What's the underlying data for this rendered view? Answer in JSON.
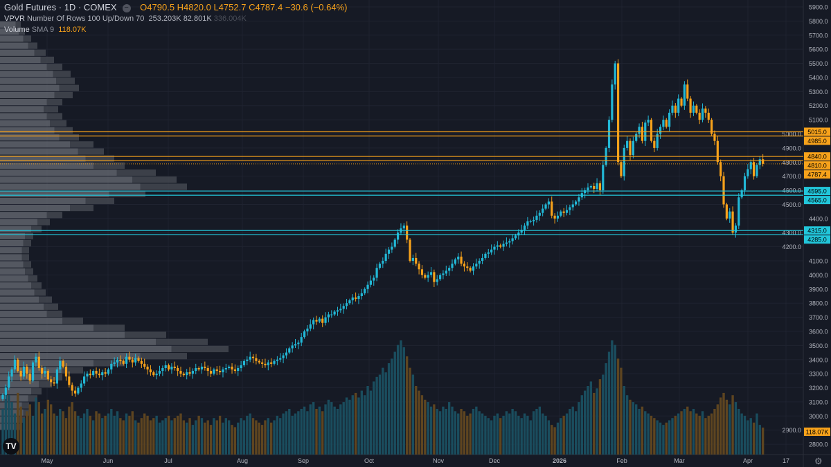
{
  "header": {
    "title": "Gold Futures · 1D · COMEX",
    "open": "O4790.5",
    "high": "H4820.0",
    "low": "L4752.7",
    "close": "C4787.4",
    "change": "−30.6 (−0.64%)",
    "vpvr_label": "VPVR",
    "vpvr_params": "Number Of Rows 100 Up/Down 70",
    "vpvr_up": "253.203K",
    "vpvr_down": "82.801K",
    "vpvr_total": "336.004K",
    "volume_label": "Volume",
    "volume_params": "SMA 9",
    "volume_value": "118.07K"
  },
  "colors": {
    "background": "#161a25",
    "up": "#22b8d6",
    "down": "#f7a21b",
    "vol_up": "#1a4d5e",
    "vol_down": "#5e4520",
    "grid": "#1f2330"
  },
  "icons": {
    "logo": "tradingview-logo",
    "settings": "gear-icon"
  },
  "chart_data": {
    "type": "candlestick",
    "title": "Gold Futures · 1D · COMEX",
    "ylim": [
      2750,
      5950
    ],
    "y_ticks": [
      2800,
      2900,
      3000,
      3100,
      3200,
      3300,
      3400,
      3500,
      3600,
      3700,
      3800,
      3900,
      4000,
      4100,
      4200,
      4300,
      4400,
      4500,
      4600,
      4700,
      4800,
      4900,
      5000,
      5100,
      5200,
      5300,
      5400,
      5500,
      5600,
      5700,
      5800,
      5900
    ],
    "x_ticks": [
      "May",
      "Jun",
      "Jul",
      "Aug",
      "Sep",
      "Oct",
      "Nov",
      "Dec",
      "2026",
      "Feb",
      "Mar",
      "Apr",
      "17"
    ],
    "closes": [
      3150,
      3200,
      3280,
      3330,
      3400,
      3320,
      3280,
      3350,
      3300,
      3250,
      3380,
      3420,
      3340,
      3300,
      3320,
      3260,
      3240,
      3230,
      3330,
      3390,
      3350,
      3280,
      3220,
      3180,
      3160,
      3200,
      3230,
      3280,
      3300,
      3290,
      3320,
      3300,
      3290,
      3310,
      3300,
      3330,
      3370,
      3380,
      3400,
      3390,
      3370,
      3420,
      3400,
      3380,
      3410,
      3390,
      3370,
      3350,
      3330,
      3310,
      3290,
      3300,
      3320,
      3340,
      3360,
      3330,
      3350,
      3340,
      3320,
      3300,
      3290,
      3310,
      3300,
      3320,
      3340,
      3330,
      3350,
      3340,
      3320,
      3300,
      3330,
      3320,
      3310,
      3330,
      3340,
      3350,
      3330,
      3320,
      3340,
      3360,
      3390,
      3400,
      3420,
      3410,
      3390,
      3380,
      3370,
      3360,
      3380,
      3370,
      3390,
      3400,
      3410,
      3430,
      3450,
      3480,
      3500,
      3510,
      3520,
      3560,
      3600,
      3620,
      3650,
      3680,
      3670,
      3690,
      3660,
      3700,
      3720,
      3720,
      3740,
      3750,
      3760,
      3780,
      3800,
      3820,
      3840,
      3830,
      3850,
      3870,
      3900,
      3930,
      3960,
      3980,
      4050,
      4080,
      4100,
      4150,
      4180,
      4200,
      4250,
      4300,
      4330,
      4350,
      4250,
      4100,
      4120,
      4080,
      4040,
      4000,
      3980,
      4000,
      4020,
      3950,
      3970,
      4000,
      4010,
      4030,
      4050,
      4080,
      4110,
      4130,
      4080,
      4060,
      4050,
      4030,
      4060,
      4080,
      4100,
      4120,
      4150,
      4160,
      4180,
      4200,
      4210,
      4200,
      4220,
      4230,
      4240,
      4260,
      4280,
      4300,
      4320,
      4350,
      4380,
      4380,
      4390,
      4420,
      4440,
      4470,
      4500,
      4520,
      4420,
      4400,
      4420,
      4450,
      4440,
      4460,
      4480,
      4500,
      4520,
      4550,
      4580,
      4600,
      4620,
      4630,
      4610,
      4650,
      4600,
      4780,
      4900,
      5100,
      5350,
      5500,
      4800,
      4700,
      4900,
      4950,
      4850,
      4950,
      5000,
      5050,
      4950,
      5080,
      5100,
      4950,
      4900,
      5000,
      5050,
      5100,
      5050,
      5150,
      5200,
      5150,
      5250,
      5200,
      5350,
      5250,
      5150,
      5200,
      5150,
      5100,
      5180,
      5150,
      5100,
      5000,
      4950,
      4800,
      4700,
      4500,
      4400,
      4450,
      4300,
      4350,
      4550,
      4600,
      4700,
      4750,
      4800,
      4700,
      4780,
      4820,
      4787.4
    ],
    "volumes_k": [
      200,
      300,
      260,
      230,
      180,
      270,
      210,
      160,
      190,
      220,
      170,
      250,
      230,
      180,
      200,
      240,
      220,
      180,
      170,
      200,
      190,
      160,
      210,
      230,
      190,
      170,
      160,
      180,
      200,
      170,
      150,
      190,
      180,
      160,
      170,
      180,
      200,
      170,
      190,
      160,
      150,
      180,
      170,
      190,
      150,
      140,
      160,
      180,
      170,
      150,
      160,
      170,
      140,
      150,
      160,
      170,
      150,
      160,
      170,
      180,
      150,
      140,
      160,
      130,
      150,
      170,
      160,
      140,
      150,
      130,
      160,
      150,
      170,
      140,
      160,
      150,
      130,
      120,
      140,
      160,
      150,
      170,
      180,
      160,
      150,
      140,
      130,
      150,
      160,
      140,
      150,
      170,
      160,
      180,
      190,
      200,
      170,
      180,
      190,
      200,
      210,
      190,
      220,
      230,
      200,
      210,
      190,
      220,
      240,
      230,
      210,
      200,
      220,
      230,
      250,
      240,
      260,
      270,
      250,
      280,
      260,
      300,
      280,
      320,
      340,
      350,
      380,
      360,
      400,
      420,
      450,
      480,
      500,
      470,
      430,
      380,
      350,
      300,
      280,
      260,
      240,
      230,
      210,
      220,
      200,
      190,
      210,
      200,
      230,
      210,
      190,
      180,
      200,
      190,
      170,
      180,
      200,
      210,
      190,
      180,
      170,
      160,
      150,
      170,
      180,
      160,
      170,
      190,
      180,
      200,
      190,
      170,
      160,
      180,
      170,
      150,
      190,
      200,
      210,
      180,
      170,
      150,
      130,
      120,
      140,
      160,
      170,
      180,
      200,
      210,
      190,
      230,
      260,
      280,
      300,
      320,
      270,
      290,
      330,
      350,
      400,
      450,
      500,
      480,
      420,
      380,
      300,
      260,
      240,
      230,
      220,
      200,
      210,
      190,
      180,
      170,
      160,
      150,
      140,
      130,
      140,
      150,
      160,
      170,
      180,
      190,
      200,
      210,
      190,
      200,
      180,
      170,
      190,
      160,
      170,
      180,
      200,
      220,
      250,
      270,
      240,
      220,
      260,
      230,
      200,
      180,
      170,
      150,
      160,
      140,
      180,
      130,
      118
    ]
  },
  "vpvr": {
    "bucket_start": 2900,
    "bucket_size": 50,
    "volumes_k": [
      10,
      12,
      15,
      14,
      18,
      20,
      25,
      30,
      40,
      60,
      90,
      110,
      100,
      80,
      60,
      40,
      30,
      28,
      25,
      22,
      20,
      18,
      16,
      15,
      14,
      14,
      15,
      16,
      20,
      24,
      30,
      45,
      55,
      70,
      90,
      85,
      75,
      60,
      55,
      50,
      45,
      38,
      35,
      32,
      30,
      28,
      30,
      35,
      38,
      36,
      34,
      30,
      26,
      22,
      18,
      15,
      12,
      10
    ]
  },
  "levels": [
    {
      "price": 5015.0,
      "label": "5015.0",
      "color": "#f7a21b"
    },
    {
      "price": 4985.0,
      "label": "4985.0",
      "color": "#f7a21b"
    },
    {
      "price": 4840.0,
      "label": "4840.0",
      "color": "#f7a21b"
    },
    {
      "price": 4810.0,
      "label": "4810.0",
      "color": "#f7a21b"
    },
    {
      "price": 4787.4,
      "label": "4787.4",
      "color": "#f7a21b"
    },
    {
      "price": 4595.0,
      "label": "4595.0",
      "color": "#22c6da"
    },
    {
      "price": 4565.0,
      "label": "4565.0",
      "color": "#22c6da"
    },
    {
      "price": 4315.0,
      "label": "4315.0",
      "color": "#22c6da"
    },
    {
      "price": 4285.0,
      "label": "4285.0",
      "color": "#22c6da"
    }
  ]
}
